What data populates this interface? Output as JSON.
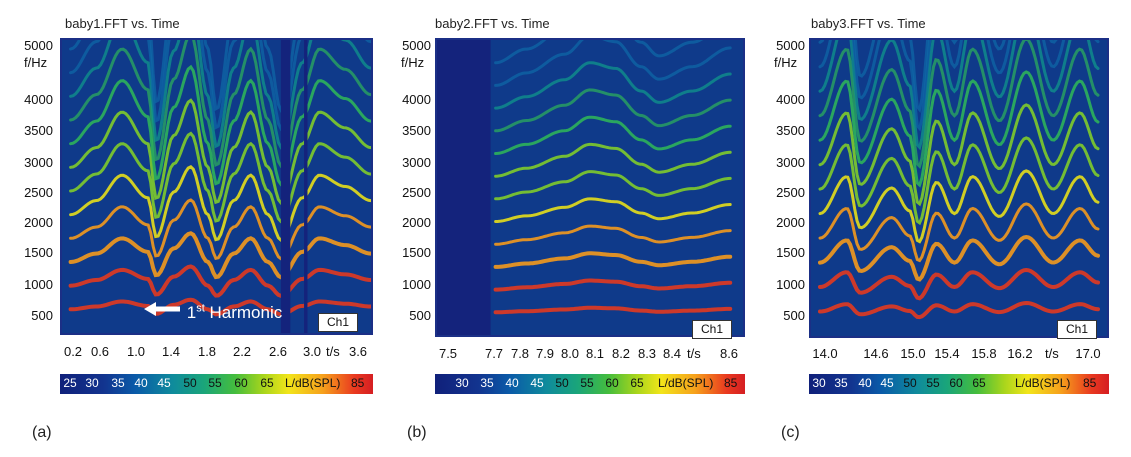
{
  "panels": [
    {
      "label": "(a)",
      "title": "baby1.FFT vs. Time",
      "y_unit": "f/Hz",
      "y_ticks": [
        "5000",
        "4000",
        "3500",
        "3000",
        "2500",
        "2000",
        "1500",
        "1000",
        "500"
      ],
      "x_ticks": [
        "0.2",
        "0.6",
        "1.0",
        "1.4",
        "1.8",
        "2.2",
        "2.6",
        "3.0"
      ],
      "x_unit": "t/s",
      "x_last": "3.6",
      "channel": "Ch1",
      "colorbar_ticks": [
        "25",
        "30",
        "35",
        "40",
        "45",
        "50",
        "55",
        "60",
        "65"
      ],
      "colorbar_unit": "L/dB(SPL)",
      "colorbar_max": "85",
      "annotation": {
        "sup_text": "st",
        "base": "1",
        "text": "Harmonic"
      }
    },
    {
      "label": "(b)",
      "title": "baby2.FFT vs. Time",
      "y_unit": "f/Hz",
      "y_ticks": [
        "5000",
        "4000",
        "3500",
        "3000",
        "2500",
        "2000",
        "1500",
        "1000",
        "500"
      ],
      "x_ticks": [
        "7.5",
        "7.7",
        "7.8",
        "7.9",
        "8.0",
        "8.1",
        "8.2",
        "8.3",
        "8.4"
      ],
      "x_unit": "t/s",
      "x_last": "8.6",
      "channel": "Ch1",
      "colorbar_ticks": [
        "30",
        "35",
        "40",
        "45",
        "50",
        "55",
        "60",
        "65"
      ],
      "colorbar_unit": "L/dB(SPL)",
      "colorbar_max": "85"
    },
    {
      "label": "(c)",
      "title": "baby3.FFT vs. Time",
      "y_unit": "f/Hz",
      "y_ticks": [
        "5000",
        "4000",
        "3500",
        "3000",
        "2500",
        "2000",
        "1500",
        "1000",
        "500"
      ],
      "x_ticks": [
        "14.0",
        "14.6",
        "15.0",
        "15.4",
        "15.8",
        "16.2"
      ],
      "x_unit": "t/s",
      "x_last": "17.0",
      "channel": "Ch1",
      "colorbar_ticks": [
        "30",
        "35",
        "40",
        "45",
        "50",
        "55",
        "60",
        "65"
      ],
      "colorbar_unit": "L/dB(SPL)",
      "colorbar_max": "85"
    }
  ],
  "chart_data": [
    {
      "type": "heatmap",
      "title": "baby1.FFT vs. Time",
      "xlabel": "t/s",
      "ylabel": "f/Hz",
      "xlim": [
        0.0,
        3.6
      ],
      "ylim": [
        0,
        5200
      ],
      "fundamental_hz": [
        [
          0.1,
          420
        ],
        [
          0.4,
          470
        ],
        [
          0.7,
          560
        ],
        [
          1.0,
          480
        ],
        [
          1.1,
          340
        ],
        [
          1.3,
          500
        ],
        [
          1.5,
          590
        ],
        [
          1.7,
          420
        ],
        [
          1.8,
          330
        ],
        [
          2.0,
          470
        ],
        [
          2.2,
          560
        ],
        [
          2.4,
          420
        ],
        [
          2.55,
          330
        ],
        [
          2.8,
          480
        ],
        [
          3.0,
          560
        ],
        [
          3.3,
          520
        ],
        [
          3.6,
          470
        ]
      ],
      "gaps_s": [
        [
          2.55,
          2.66
        ],
        [
          2.82,
          2.86
        ]
      ],
      "colorbar": {
        "label": "L/dB(SPL)",
        "range": [
          25,
          85
        ]
      }
    },
    {
      "type": "heatmap",
      "title": "baby2.FFT vs. Time",
      "xlabel": "t/s",
      "ylabel": "f/Hz",
      "xlim": [
        7.45,
        8.65
      ],
      "ylim": [
        0,
        5200
      ],
      "fundamental_hz": [
        [
          7.68,
          400
        ],
        [
          7.8,
          420
        ],
        [
          7.95,
          450
        ],
        [
          8.05,
          480
        ],
        [
          8.15,
          470
        ],
        [
          8.25,
          430
        ],
        [
          8.32,
          410
        ],
        [
          8.45,
          430
        ],
        [
          8.6,
          460
        ]
      ],
      "gaps_s": [
        [
          7.45,
          7.66
        ]
      ],
      "colorbar": {
        "label": "L/dB(SPL)",
        "range": [
          30,
          85
        ]
      }
    },
    {
      "type": "heatmap",
      "title": "baby3.FFT vs. Time",
      "xlabel": "t/s",
      "ylabel": "f/Hz",
      "xlim": [
        13.8,
        17.1
      ],
      "ylim": [
        0,
        5200
      ],
      "fundamental_hz": [
        [
          13.9,
          430
        ],
        [
          14.2,
          560
        ],
        [
          14.35,
          380
        ],
        [
          14.7,
          520
        ],
        [
          14.9,
          440
        ],
        [
          15.0,
          330
        ],
        [
          15.2,
          540
        ],
        [
          15.4,
          430
        ],
        [
          15.6,
          560
        ],
        [
          15.9,
          420
        ],
        [
          16.2,
          580
        ],
        [
          16.5,
          430
        ],
        [
          16.8,
          560
        ],
        [
          17.0,
          470
        ]
      ],
      "gaps_s": [],
      "colorbar": {
        "label": "L/dB(SPL)",
        "range": [
          30,
          85
        ]
      }
    }
  ]
}
